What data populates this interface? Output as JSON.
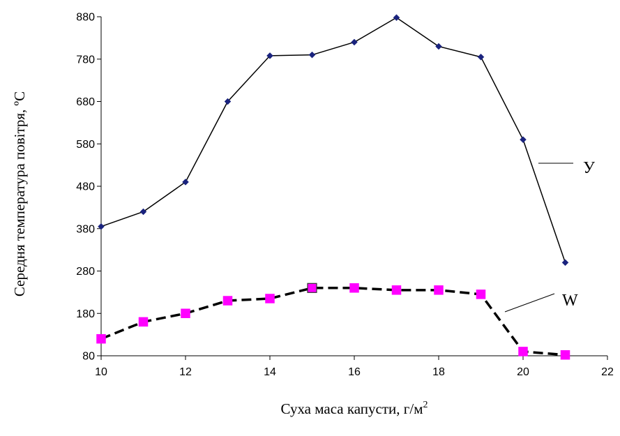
{
  "chart_data": {
    "type": "line",
    "xlabel": "Суха маса капусти, г/м",
    "xlabel_superscript": "2",
    "ylabel": "Середня температура повітря, ºC",
    "xlim": [
      10,
      22
    ],
    "ylim": [
      80,
      880
    ],
    "x_ticks": [
      10,
      12,
      14,
      16,
      18,
      20,
      22
    ],
    "y_ticks": [
      80,
      180,
      280,
      380,
      480,
      580,
      680,
      780,
      880
    ],
    "grid": false,
    "series": [
      {
        "name": "У",
        "color": "#000000",
        "marker_color": "#1a237e",
        "marker": "diamond",
        "line_style": "solid",
        "x": [
          10,
          11,
          12,
          13,
          14,
          15,
          16,
          17,
          18,
          19,
          20,
          21
        ],
        "y": [
          385,
          420,
          490,
          680,
          788,
          790,
          820,
          878,
          810,
          785,
          590,
          300
        ]
      },
      {
        "name": "W",
        "color": "#000000",
        "marker_color": "#ff00ff",
        "marker": "square",
        "line_style": "dashed",
        "x": [
          10,
          11,
          12,
          13,
          14,
          15,
          16,
          17,
          18,
          19,
          20,
          21
        ],
        "y": [
          120,
          160,
          180,
          210,
          215,
          240,
          240,
          235,
          235,
          225,
          90,
          82
        ]
      }
    ]
  }
}
